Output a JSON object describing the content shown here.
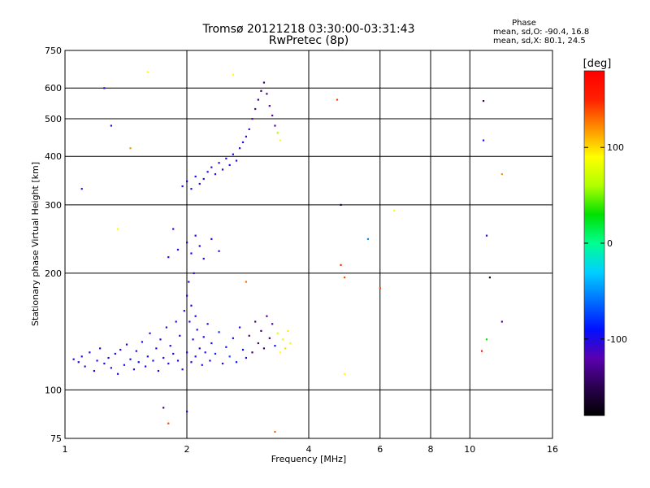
{
  "chart_data": {
    "type": "scatter",
    "title": "Tromsø 20121218 03:30:00-03:31:43",
    "subtitle": "RwPretec (8p)",
    "xlabel": "Frequency [MHz]",
    "ylabel": "Stationary phase Virtual Height [km]",
    "x_scale": "log",
    "y_scale": "log",
    "xlim": [
      1,
      16
    ],
    "ylim": [
      75,
      750
    ],
    "x_ticks": [
      "1",
      "2",
      "4",
      "6",
      "8",
      "10",
      "16"
    ],
    "x_tick_values": [
      1,
      2,
      4,
      6,
      8,
      10,
      16
    ],
    "y_ticks": [
      "75",
      "100",
      "200",
      "300",
      "400",
      "500",
      "600",
      "750"
    ],
    "y_tick_values": [
      75,
      100,
      200,
      300,
      400,
      500,
      600,
      750
    ],
    "grid": true,
    "phase_info": {
      "title": "Phase",
      "line1": "mean, sd,O: -90.4, 16.8",
      "line2": "mean, sd,X:  80.1, 24.5"
    },
    "colorbar": {
      "label": "[deg]",
      "ticks": [
        "100",
        "0",
        "-100"
      ],
      "tick_values": [
        100,
        0,
        -100
      ],
      "range": [
        -180,
        180
      ],
      "colors": [
        "#000000",
        "#2b0050",
        "#5a00b0",
        "#0010ff",
        "#0070ff",
        "#00d0ff",
        "#00ff90",
        "#00e000",
        "#b0ff00",
        "#ffff00",
        "#ff9000",
        "#ff2000",
        "#ff0000"
      ]
    },
    "points": [
      [
        1.05,
        120,
        -100
      ],
      [
        1.08,
        118,
        -105
      ],
      [
        1.1,
        122,
        -98
      ],
      [
        1.12,
        115,
        -110
      ],
      [
        1.15,
        125,
        -100
      ],
      [
        1.18,
        112,
        -95
      ],
      [
        1.2,
        119,
        -102
      ],
      [
        1.22,
        128,
        -108
      ],
      [
        1.25,
        117,
        -100
      ],
      [
        1.28,
        121,
        -96
      ],
      [
        1.3,
        114,
        -104
      ],
      [
        1.33,
        124,
        -101
      ],
      [
        1.35,
        110,
        -99
      ],
      [
        1.37,
        127,
        -103
      ],
      [
        1.4,
        116,
        -100
      ],
      [
        1.42,
        131,
        -107
      ],
      [
        1.45,
        120,
        -97
      ],
      [
        1.48,
        113,
        -100
      ],
      [
        1.5,
        126,
        -105
      ],
      [
        1.52,
        118,
        -99
      ],
      [
        1.55,
        133,
        -102
      ],
      [
        1.58,
        115,
        -100
      ],
      [
        1.6,
        122,
        -98
      ],
      [
        1.62,
        140,
        -104
      ],
      [
        1.65,
        119,
        -100
      ],
      [
        1.68,
        128,
        -101
      ],
      [
        1.7,
        112,
        -99
      ],
      [
        1.72,
        135,
        -103
      ],
      [
        1.75,
        121,
        -100
      ],
      [
        1.78,
        145,
        -106
      ],
      [
        1.8,
        117,
        -100
      ],
      [
        1.82,
        130,
        -98
      ],
      [
        1.85,
        124,
        -102
      ],
      [
        1.88,
        150,
        -100
      ],
      [
        1.9,
        119,
        -101
      ],
      [
        1.92,
        138,
        -99
      ],
      [
        1.95,
        113,
        -100
      ],
      [
        1.97,
        160,
        -103
      ],
      [
        2.0,
        125,
        -100
      ],
      [
        2.0,
        175,
        -98
      ],
      [
        2.02,
        190,
        -102
      ],
      [
        2.03,
        150,
        -100
      ],
      [
        2.05,
        118,
        -101
      ],
      [
        2.05,
        165,
        -99
      ],
      [
        2.07,
        135,
        -100
      ],
      [
        2.08,
        200,
        -104
      ],
      [
        2.1,
        122,
        -100
      ],
      [
        2.1,
        155,
        -97
      ],
      [
        2.12,
        143,
        -100
      ],
      [
        2.15,
        128,
        -102
      ],
      [
        2.18,
        116,
        -100
      ],
      [
        2.2,
        137,
        -99
      ],
      [
        2.22,
        125,
        -100
      ],
      [
        2.25,
        148,
        -103
      ],
      [
        2.28,
        119,
        -100
      ],
      [
        2.3,
        132,
        -90
      ],
      [
        2.35,
        124,
        -85
      ],
      [
        2.4,
        141,
        -80
      ],
      [
        2.45,
        117,
        -100
      ],
      [
        2.5,
        129,
        -95
      ],
      [
        2.55,
        122,
        -70
      ],
      [
        2.6,
        136,
        -100
      ],
      [
        2.65,
        118,
        -88
      ],
      [
        2.7,
        145,
        -100
      ],
      [
        2.75,
        127,
        -92
      ],
      [
        2.8,
        121,
        -100
      ],
      [
        2.85,
        138,
        -130
      ],
      [
        2.9,
        125,
        -140
      ],
      [
        2.95,
        150,
        -135
      ],
      [
        3.0,
        132,
        -145
      ],
      [
        3.05,
        142,
        -138
      ],
      [
        3.1,
        128,
        -142
      ],
      [
        3.15,
        155,
        -130
      ],
      [
        3.2,
        136,
        -140
      ],
      [
        3.25,
        148,
        -125
      ],
      [
        3.3,
        130,
        -90
      ],
      [
        3.35,
        140,
        80
      ],
      [
        3.4,
        125,
        90
      ],
      [
        3.45,
        135,
        85
      ],
      [
        3.5,
        128,
        100
      ],
      [
        3.55,
        142,
        95
      ],
      [
        3.6,
        132,
        88
      ],
      [
        1.9,
        230,
        -100
      ],
      [
        2.0,
        240,
        -102
      ],
      [
        2.05,
        225,
        -98
      ],
      [
        2.1,
        250,
        -100
      ],
      [
        2.15,
        235,
        -101
      ],
      [
        2.2,
        218,
        -99
      ],
      [
        2.3,
        245,
        -100
      ],
      [
        2.4,
        228,
        -103
      ],
      [
        1.85,
        260,
        -100
      ],
      [
        1.8,
        220,
        -97
      ],
      [
        1.95,
        335,
        -100
      ],
      [
        2.0,
        345,
        -102
      ],
      [
        2.05,
        330,
        -98
      ],
      [
        2.1,
        355,
        -100
      ],
      [
        2.15,
        340,
        -101
      ],
      [
        2.2,
        350,
        -99
      ],
      [
        2.25,
        365,
        -100
      ],
      [
        2.3,
        375,
        -103
      ],
      [
        2.35,
        360,
        -100
      ],
      [
        2.4,
        385,
        -98
      ],
      [
        2.45,
        370,
        -100
      ],
      [
        2.5,
        395,
        -102
      ],
      [
        2.55,
        380,
        -100
      ],
      [
        2.6,
        405,
        -101
      ],
      [
        2.65,
        390,
        -99
      ],
      [
        2.7,
        420,
        -100
      ],
      [
        2.75,
        435,
        -103
      ],
      [
        2.8,
        450,
        -100
      ],
      [
        2.85,
        470,
        -110
      ],
      [
        2.9,
        500,
        -120
      ],
      [
        2.95,
        530,
        -130
      ],
      [
        3.0,
        560,
        -140
      ],
      [
        3.05,
        590,
        -145
      ],
      [
        3.1,
        620,
        -140
      ],
      [
        3.15,
        580,
        -135
      ],
      [
        3.2,
        540,
        -130
      ],
      [
        3.25,
        510,
        -125
      ],
      [
        3.3,
        480,
        -120
      ],
      [
        3.35,
        460,
        60
      ],
      [
        3.4,
        440,
        85
      ],
      [
        1.1,
        330,
        -105
      ],
      [
        1.25,
        600,
        -100
      ],
      [
        1.3,
        480,
        -102
      ],
      [
        1.35,
        260,
        90
      ],
      [
        1.45,
        420,
        120
      ],
      [
        1.6,
        660,
        90
      ],
      [
        1.75,
        90,
        -140
      ],
      [
        1.8,
        82,
        140
      ],
      [
        2.0,
        88,
        -110
      ],
      [
        2.6,
        650,
        90
      ],
      [
        2.8,
        190,
        130
      ],
      [
        3.3,
        78,
        130
      ],
      [
        4.7,
        560,
        140
      ],
      [
        4.8,
        300,
        -160
      ],
      [
        4.8,
        210,
        150
      ],
      [
        4.9,
        195,
        140
      ],
      [
        4.9,
        110,
        90
      ],
      [
        6.0,
        183,
        140
      ],
      [
        6.5,
        290,
        90
      ],
      [
        5.6,
        245,
        -50
      ],
      [
        10.8,
        556,
        -140
      ],
      [
        10.8,
        440,
        -100
      ],
      [
        11.0,
        250,
        -110
      ],
      [
        11.2,
        195,
        -170
      ],
      [
        11.0,
        135,
        30
      ],
      [
        10.7,
        126,
        150
      ],
      [
        12.0,
        360,
        120
      ],
      [
        12.0,
        150,
        -120
      ]
    ]
  }
}
